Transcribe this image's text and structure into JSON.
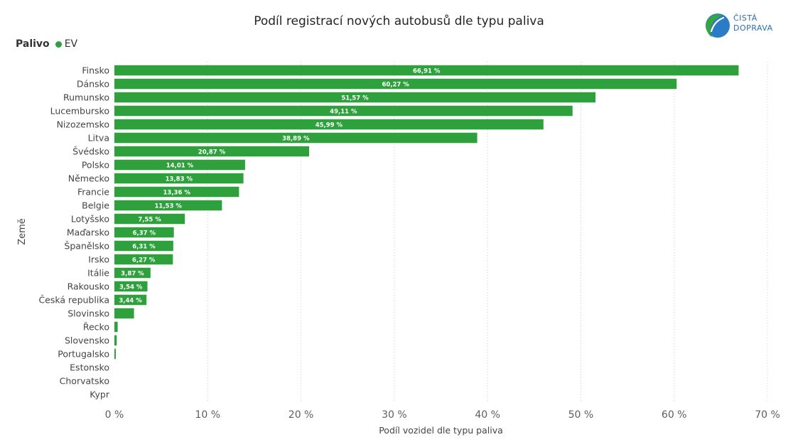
{
  "brand": {
    "line1": "ČISTÁ",
    "line2": "DOPRAVA",
    "colors": {
      "green": "#35a83a",
      "blue": "#2a7cc7"
    }
  },
  "legend": {
    "label": "Palivo",
    "series_name": "EV",
    "color": "#2ea03c"
  },
  "chart_data": {
    "type": "bar",
    "orientation": "horizontal",
    "title": "Podíl registrací nových autobusů dle typu paliva",
    "xlabel": "Podíl vozidel dle typu paliva",
    "ylabel": "Země",
    "xlim": [
      0,
      70
    ],
    "xticks": [
      0,
      10,
      20,
      30,
      40,
      50,
      60,
      70
    ],
    "xtick_labels": [
      "0 %",
      "10 %",
      "20 %",
      "30 %",
      "40 %",
      "50 %",
      "60 %",
      "70 %"
    ],
    "grid": "vertical dotted",
    "bar_color": "#2ea03c",
    "series": [
      {
        "name": "EV",
        "categories": [
          "Finsko",
          "Dánsko",
          "Rumunsko",
          "Lucembursko",
          "Nizozemsko",
          "Litva",
          "Švédsko",
          "Polsko",
          "Německo",
          "Francie",
          "Belgie",
          "Lotyšsko",
          "Maďarsko",
          "Španělsko",
          "Irsko",
          "Itálie",
          "Rakousko",
          "Česká republika",
          "Slovinsko",
          "Řecko",
          "Slovensko",
          "Portugalsko",
          "Estonsko",
          "Chorvatsko",
          "Kypr"
        ],
        "values": [
          66.91,
          60.27,
          51.57,
          49.11,
          45.99,
          38.89,
          20.87,
          14.01,
          13.83,
          13.36,
          11.53,
          7.55,
          6.37,
          6.31,
          6.27,
          3.87,
          3.54,
          3.44,
          2.1,
          0.35,
          0.25,
          0.15,
          0,
          0,
          0
        ],
        "labels": [
          "66,91 %",
          "60,27 %",
          "51,57 %",
          "49,11 %",
          "45,99 %",
          "38,89 %",
          "20,87 %",
          "14,01 %",
          "13,83 %",
          "13,36 %",
          "11,53 %",
          "7,55 %",
          "6,37 %",
          "6,31 %",
          "6,27 %",
          "3,87 %",
          "3,54 %",
          "3,44 %",
          "",
          "",
          "",
          "",
          "",
          "",
          ""
        ]
      }
    ]
  }
}
